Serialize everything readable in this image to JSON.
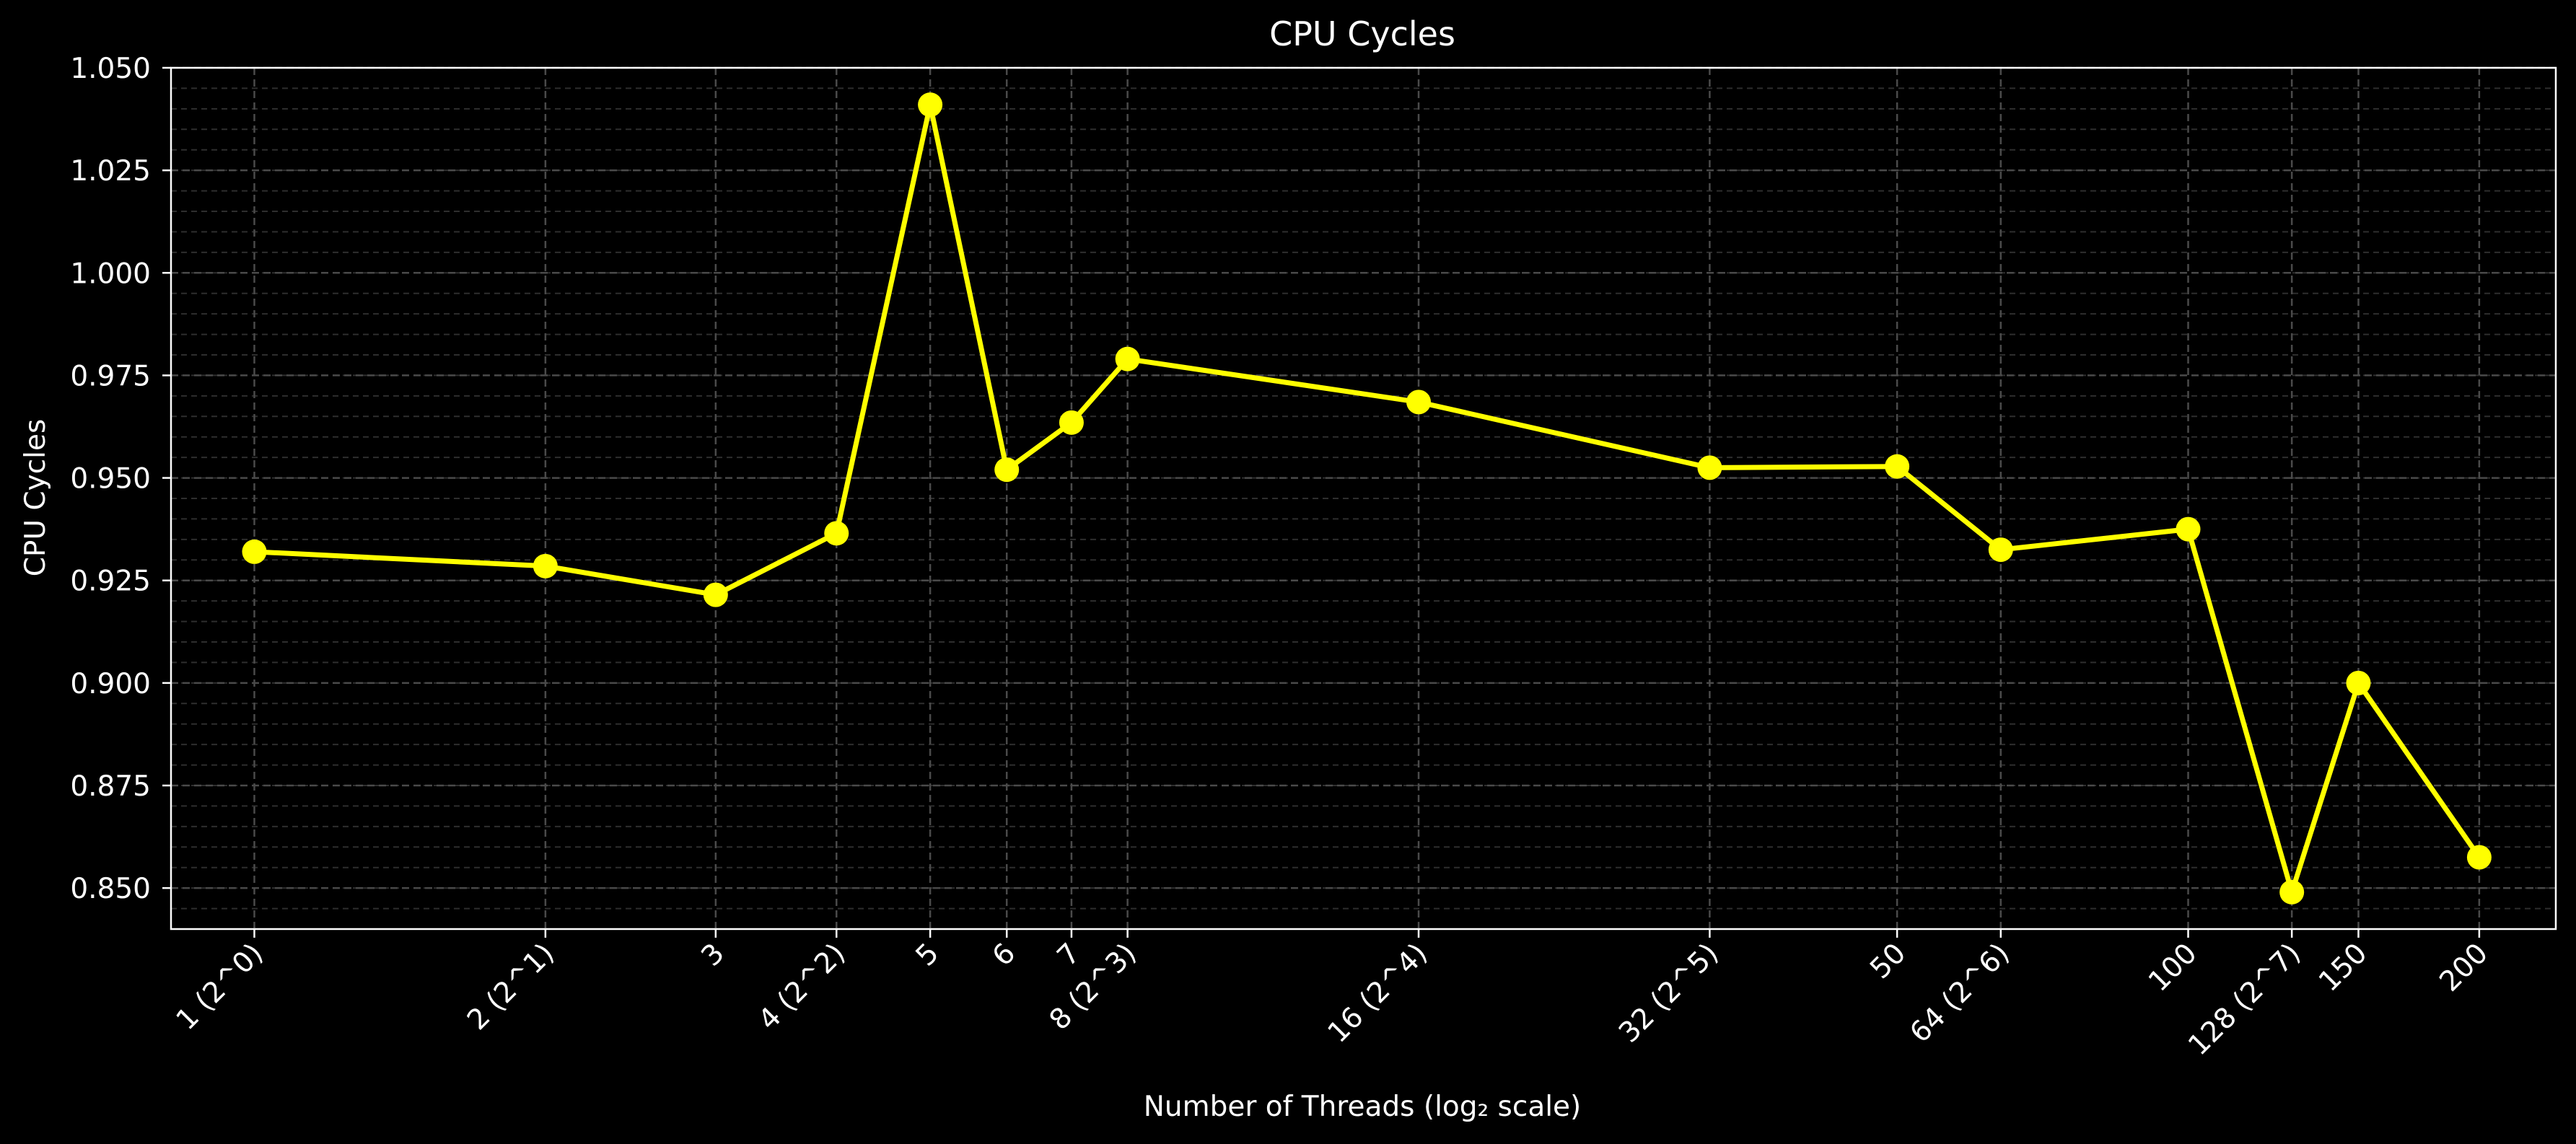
{
  "chart_data": {
    "type": "line",
    "title": "CPU Cycles",
    "xlabel": "Number of Threads (log₂ scale)",
    "ylabel": "CPU Cycles",
    "x_scale": "log2",
    "xlim": [
      0.82,
      240
    ],
    "ylim": [
      0.84,
      1.05
    ],
    "grid": true,
    "grid_minor": true,
    "legend": "none",
    "x_ticks": [
      {
        "value": 1,
        "label": "1 (2^0)"
      },
      {
        "value": 2,
        "label": "2 (2^1)"
      },
      {
        "value": 3,
        "label": "3"
      },
      {
        "value": 4,
        "label": "4 (2^2)"
      },
      {
        "value": 5,
        "label": "5"
      },
      {
        "value": 6,
        "label": "6"
      },
      {
        "value": 7,
        "label": "7"
      },
      {
        "value": 8,
        "label": "8 (2^3)"
      },
      {
        "value": 16,
        "label": "16 (2^4)"
      },
      {
        "value": 32,
        "label": "32 (2^5)"
      },
      {
        "value": 50,
        "label": "50"
      },
      {
        "value": 64,
        "label": "64 (2^6)"
      },
      {
        "value": 100,
        "label": "100"
      },
      {
        "value": 128,
        "label": "128 (2^7)"
      },
      {
        "value": 150,
        "label": "150"
      },
      {
        "value": 200,
        "label": "200"
      }
    ],
    "y_ticks": [
      {
        "value": 0.85,
        "label": "0.850"
      },
      {
        "value": 0.875,
        "label": "0.875"
      },
      {
        "value": 0.9,
        "label": "0.900"
      },
      {
        "value": 0.925,
        "label": "0.925"
      },
      {
        "value": 0.95,
        "label": "0.950"
      },
      {
        "value": 0.975,
        "label": "0.975"
      },
      {
        "value": 1.0,
        "label": "1.000"
      },
      {
        "value": 1.025,
        "label": "1.025"
      },
      {
        "value": 1.05,
        "label": "1.050"
      }
    ],
    "series": [
      {
        "color": "#ffff00",
        "x": [
          1,
          2,
          3,
          4,
          5,
          6,
          7,
          8,
          16,
          32,
          50,
          64,
          100,
          128,
          150,
          200
        ],
        "y": [
          0.932,
          0.9285,
          0.9215,
          0.9365,
          1.041,
          0.952,
          0.9635,
          0.979,
          0.9685,
          0.9525,
          0.9528,
          0.9325,
          0.9375,
          0.849,
          0.9,
          0.8575
        ]
      }
    ]
  },
  "colors": {
    "background": "#000000",
    "axes_frame": "#ffffff",
    "text": "#ffffff",
    "grid_major": "#4a4a4a",
    "grid_minor": "#2e2e2e",
    "line": "#ffff00"
  }
}
